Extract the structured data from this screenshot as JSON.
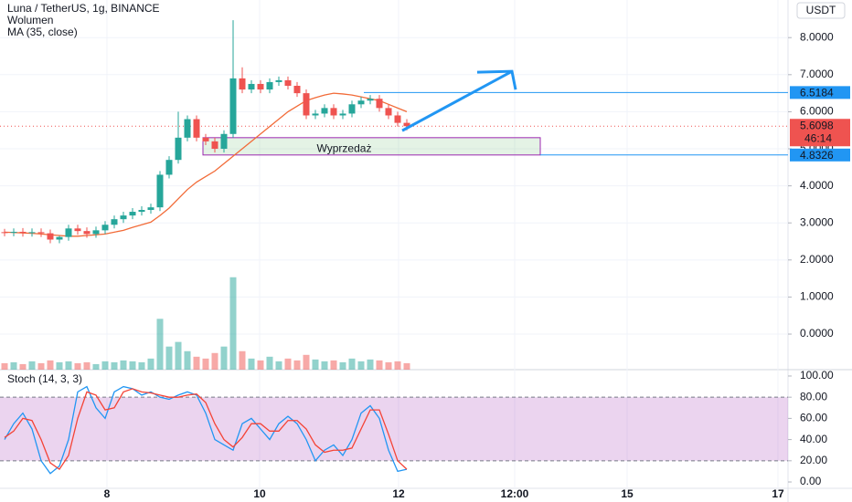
{
  "chart_data": {
    "type": "candlestick",
    "title": "Luna / TetherUS, 1g, BINANCE",
    "currency": "USDT",
    "x": [
      0,
      1,
      2,
      3,
      4,
      5,
      6,
      7,
      8,
      9,
      10,
      11,
      12,
      13,
      14,
      15,
      16,
      17,
      18,
      19,
      20,
      21,
      22,
      23,
      24,
      25,
      26,
      27,
      28,
      29,
      30,
      31,
      32,
      33,
      34,
      35,
      36,
      37,
      38,
      39,
      40,
      41,
      42,
      43,
      44
    ],
    "open": [
      2.75,
      2.74,
      2.76,
      2.73,
      2.75,
      2.72,
      2.55,
      2.62,
      2.85,
      2.78,
      2.7,
      2.8,
      2.95,
      3.1,
      3.2,
      3.3,
      3.35,
      3.42,
      4.3,
      4.7,
      5.3,
      5.8,
      5.3,
      5.2,
      5.0,
      5.4,
      6.9,
      6.6,
      6.75,
      6.6,
      6.8,
      6.85,
      6.7,
      6.5,
      5.9,
      5.95,
      6.1,
      5.9,
      5.95,
      6.2,
      6.3,
      6.35,
      6.1,
      5.9,
      5.7
    ],
    "high": [
      2.84,
      2.85,
      2.86,
      2.85,
      2.85,
      2.82,
      2.65,
      2.95,
      2.95,
      2.88,
      2.9,
      3.05,
      3.2,
      3.3,
      3.4,
      3.45,
      3.52,
      4.4,
      4.8,
      6.0,
      5.9,
      5.9,
      5.4,
      5.3,
      5.5,
      8.47,
      7.2,
      6.85,
      6.85,
      6.9,
      6.95,
      6.95,
      6.8,
      6.6,
      6.05,
      6.2,
      6.2,
      6.05,
      6.3,
      6.4,
      6.45,
      6.45,
      6.2,
      6.0,
      5.8
    ],
    "low": [
      2.64,
      2.64,
      2.63,
      2.63,
      2.62,
      2.45,
      2.45,
      2.52,
      2.68,
      2.6,
      2.6,
      2.7,
      2.85,
      3.0,
      3.1,
      3.2,
      3.25,
      3.32,
      4.2,
      4.6,
      5.2,
      5.2,
      5.1,
      4.9,
      4.9,
      5.3,
      6.5,
      6.5,
      6.5,
      6.5,
      6.7,
      6.6,
      6.4,
      5.8,
      5.8,
      5.85,
      5.8,
      5.8,
      5.85,
      6.1,
      6.2,
      6.0,
      5.8,
      5.6,
      5.5
    ],
    "close": [
      2.74,
      2.76,
      2.73,
      2.75,
      2.72,
      2.55,
      2.62,
      2.85,
      2.78,
      2.7,
      2.8,
      2.95,
      3.1,
      3.2,
      3.3,
      3.35,
      3.42,
      4.3,
      4.7,
      5.3,
      5.8,
      5.3,
      5.2,
      5.0,
      5.4,
      6.9,
      6.6,
      6.75,
      6.6,
      6.8,
      6.85,
      6.7,
      6.5,
      5.9,
      5.95,
      6.1,
      5.9,
      5.95,
      6.2,
      6.3,
      6.35,
      6.1,
      5.9,
      5.7,
      5.61
    ],
    "up_color": "#26a69a",
    "down_color": "#ef5350",
    "xlim": [
      -0.5,
      85.7
    ],
    "xticks": [
      {
        "value": 11.2,
        "label": "8"
      },
      {
        "value": 27.9,
        "label": "10"
      },
      {
        "value": 43.1,
        "label": "12"
      },
      {
        "value": 55.8,
        "label": "12:00"
      },
      {
        "value": 68.1,
        "label": "15"
      },
      {
        "value": 84.6,
        "label": "17"
      }
    ],
    "ylim": [
      -0.96,
      9.015
    ],
    "yticks": [
      {
        "value": 0,
        "label": "0.0000"
      },
      {
        "value": 1,
        "label": "1.0000"
      },
      {
        "value": 2,
        "label": "2.0000"
      },
      {
        "value": 3,
        "label": "3.0000"
      },
      {
        "value": 4,
        "label": "4.0000"
      },
      {
        "value": 5,
        "label": "5.0000"
      },
      {
        "value": 6,
        "label": "6.0000"
      },
      {
        "value": 7,
        "label": "7.0000"
      },
      {
        "value": 8,
        "label": "8.0000"
      }
    ],
    "grid": true,
    "ma": {
      "name": "MA (35, close)",
      "color": "#f26b38",
      "values": [
        2.75,
        2.74,
        2.73,
        2.72,
        2.7,
        2.68,
        2.66,
        2.64,
        2.64,
        2.66,
        2.68,
        2.7,
        2.75,
        2.8,
        2.88,
        2.95,
        3.02,
        3.2,
        3.4,
        3.65,
        3.9,
        4.1,
        4.25,
        4.4,
        4.6,
        4.8,
        5.0,
        5.2,
        5.4,
        5.6,
        5.8,
        6.0,
        6.15,
        6.3,
        6.38,
        6.45,
        6.5,
        6.48,
        6.45,
        6.4,
        6.35,
        6.3,
        6.2,
        6.1,
        6.0
      ]
    },
    "volume": {
      "name": "Wolumen",
      "ylim": [
        0,
        400
      ],
      "values": [
        7,
        8,
        6,
        9,
        7,
        10,
        8,
        9,
        7,
        8,
        6,
        9,
        8,
        10,
        9,
        8,
        12,
        55,
        25,
        30,
        20,
        14,
        12,
        18,
        25,
        100,
        20,
        12,
        10,
        14,
        9,
        12,
        10,
        16,
        11,
        9,
        10,
        8,
        12,
        9,
        11,
        10,
        8,
        9,
        7
      ]
    },
    "stoch": {
      "name": "Stoch (14, 3, 3)",
      "ylim": [
        -6,
        106
      ],
      "band": [
        20,
        80
      ],
      "band_color": "#9c27b0",
      "yticks": [
        {
          "value": 0,
          "label": "0.00"
        },
        {
          "value": 20,
          "label": "20.00"
        },
        {
          "value": 40,
          "label": "40.00"
        },
        {
          "value": 60,
          "label": "60.00"
        },
        {
          "value": 80,
          "label": "80.00"
        },
        {
          "value": 100,
          "label": "100.00"
        }
      ],
      "series": [
        {
          "color": "#2196f3",
          "values": [
            40,
            55,
            65,
            50,
            20,
            8,
            15,
            40,
            85,
            90,
            70,
            60,
            85,
            90,
            88,
            82,
            85,
            80,
            78,
            82,
            85,
            82,
            65,
            40,
            35,
            30,
            55,
            60,
            50,
            40,
            55,
            62,
            55,
            40,
            20,
            30,
            35,
            25,
            40,
            65,
            72,
            60,
            30,
            10,
            12
          ]
        },
        {
          "color": "#f44336",
          "values": [
            42,
            48,
            60,
            58,
            40,
            18,
            12,
            25,
            60,
            85,
            82,
            68,
            70,
            85,
            88,
            85,
            84,
            82,
            80,
            80,
            82,
            83,
            75,
            55,
            40,
            33,
            42,
            55,
            55,
            48,
            48,
            58,
            58,
            50,
            35,
            28,
            30,
            30,
            32,
            50,
            68,
            68,
            45,
            20,
            12
          ]
        }
      ]
    },
    "levels": [
      {
        "value": 6.5184,
        "x_start": 39.3,
        "color": "#2196f3"
      },
      {
        "value": 4.8326,
        "x_start": 58.6,
        "color": "#2196f3"
      }
    ],
    "last": {
      "value": 5.6098,
      "countdown": "46:14",
      "color": "#ef5350"
    },
    "zone": {
      "label": "Wyprzedaż",
      "high": 5.3,
      "low": 4.8326,
      "x": [
        21.7,
        58.6
      ]
    },
    "arrow": {
      "from": [
        43.5,
        5.49
      ],
      "to": [
        55.5,
        7.09
      ],
      "color": "#2196f3"
    }
  }
}
